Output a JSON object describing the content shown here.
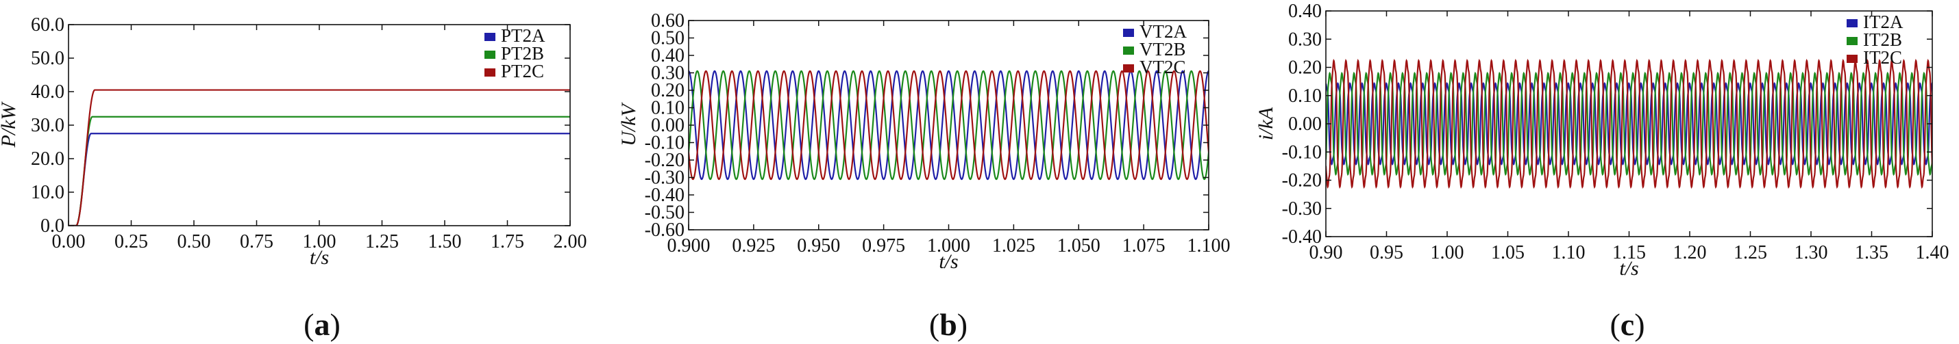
{
  "figure": {
    "captions": [
      "(a)",
      "(b)",
      "(c)"
    ]
  },
  "colors": {
    "A": "#1f1fa8",
    "B": "#1b8a1b",
    "C": "#a01212",
    "axis": "#111111"
  },
  "chart_data": [
    {
      "type": "line",
      "id": "a",
      "caption_letter": "a",
      "xlabel": "t/s",
      "ylabel": "P/kW",
      "xlim": [
        0,
        2.0
      ],
      "ylim": [
        0,
        60
      ],
      "xticks": [
        "0.00",
        "0.25",
        "0.50",
        "0.75",
        "1.00",
        "1.25",
        "1.50",
        "1.75",
        "2.00"
      ],
      "yticks": [
        "0.0",
        "10.0",
        "20.0",
        "30.0",
        "40.0",
        "50.0",
        "60.0"
      ],
      "legend_position": "top-right",
      "series": [
        {
          "name": "PT2A",
          "kind": "ramp",
          "final": 27.5,
          "t_start": 0.03,
          "t_rise": 0.06
        },
        {
          "name": "PT2B",
          "kind": "ramp",
          "final": 32.5,
          "t_start": 0.03,
          "t_rise": 0.065
        },
        {
          "name": "PT2C",
          "kind": "ramp",
          "final": 40.5,
          "t_start": 0.03,
          "t_rise": 0.075
        }
      ]
    },
    {
      "type": "line",
      "id": "b",
      "caption_letter": "b",
      "xlabel": "t/s",
      "ylabel": "U/kV",
      "xlim": [
        0.9,
        1.1
      ],
      "ylim": [
        -0.6,
        0.6
      ],
      "xticks": [
        "0.900",
        "0.925",
        "0.950",
        "0.975",
        "1.000",
        "1.025",
        "1.050",
        "1.075",
        "1.100"
      ],
      "yticks": [
        "0.60",
        "0.50",
        "0.40",
        "0.30",
        "0.20",
        "0.10",
        "0.00",
        "-0.10",
        "-0.20",
        "-0.30",
        "-0.40",
        "-0.50",
        "-0.60"
      ],
      "legend_position": "top-right",
      "series": [
        {
          "name": "VT2A",
          "kind": "sine",
          "amplitude": 0.31,
          "frequency": 100,
          "phase_deg": 90
        },
        {
          "name": "VT2B",
          "kind": "sine",
          "amplitude": 0.31,
          "frequency": 100,
          "phase_deg": -30
        },
        {
          "name": "VT2C",
          "kind": "sine",
          "amplitude": 0.31,
          "frequency": 100,
          "phase_deg": 210
        }
      ]
    },
    {
      "type": "line",
      "id": "c",
      "caption_letter": "c",
      "xlabel": "t/s",
      "ylabel": "i/kA",
      "xlim": [
        0.9,
        1.4
      ],
      "ylim": [
        -0.4,
        0.4
      ],
      "xticks": [
        "0.90",
        "0.95",
        "1.00",
        "1.05",
        "1.10",
        "1.15",
        "1.20",
        "1.25",
        "1.30",
        "1.35",
        "1.40"
      ],
      "yticks": [
        "0.40",
        "0.30",
        "0.20",
        "0.10",
        "0.00",
        "-0.10",
        "-0.20",
        "-0.30",
        "-0.40"
      ],
      "legend_position": "top-right",
      "series": [
        {
          "name": "IT2A",
          "kind": "distorted_sine",
          "amplitude": 0.16,
          "frequency": 100,
          "phase_deg": 90
        },
        {
          "name": "IT2B",
          "kind": "distorted_sine",
          "amplitude": 0.2,
          "frequency": 100,
          "phase_deg": -30
        },
        {
          "name": "IT2C",
          "kind": "distorted_sine",
          "amplitude": 0.25,
          "frequency": 100,
          "phase_deg": 210
        }
      ]
    }
  ]
}
